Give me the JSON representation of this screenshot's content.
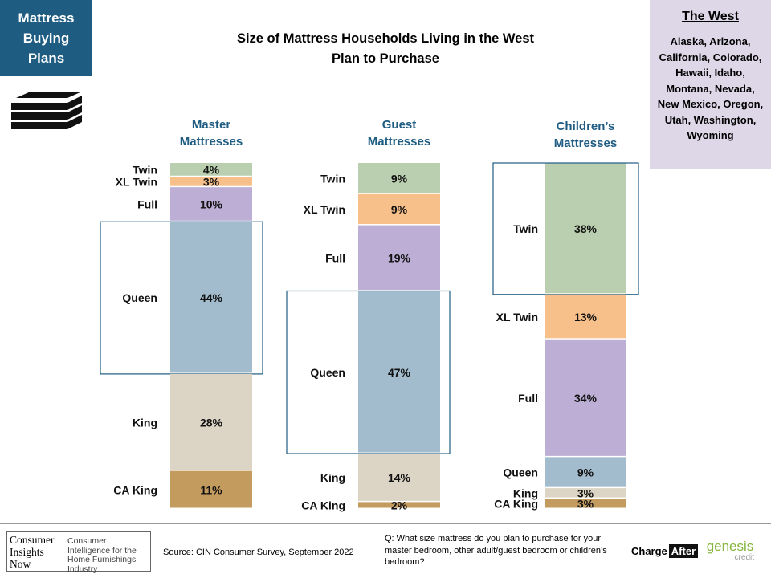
{
  "badge": {
    "text": "Mattress Buying Plans"
  },
  "title": {
    "line1": "Size of Mattress Households  Living in the West",
    "line2": "Plan to Purchase"
  },
  "region": {
    "title": "The West",
    "states": "Alaska, Arizona, California, Colorado, Hawaii, Idaho, Montana, Nevada, New Mexico, Oregon, Utah, Washington, Wyoming"
  },
  "chart_data": {
    "type": "bar",
    "subtype": "100% stacked column",
    "title": "Size of Mattress Households  Living in the West Plan to Purchase",
    "unit": "%",
    "colors": {
      "Twin": "#b9cfb0",
      "XL Twin": "#f7bf8a",
      "Full": "#bcaed4",
      "Queen": "#a3bccd",
      "King": "#dcd5c5",
      "CA King": "#c49b5e"
    },
    "label_color": "#1f5c82",
    "highlight_color": "#1f5c82",
    "series": [
      {
        "name": "Master Mattresses",
        "segments": [
          {
            "label": "Twin",
            "value": 4,
            "text": "4%"
          },
          {
            "label": "XL Twin",
            "value": 3,
            "text": "3%"
          },
          {
            "label": "Full",
            "value": 10,
            "text": "10%"
          },
          {
            "label": "Queen",
            "value": 44,
            "text": "44%",
            "highlight": true
          },
          {
            "label": "King",
            "value": 28,
            "text": "28%"
          },
          {
            "label": "CA King",
            "value": 11,
            "text": "11%"
          }
        ]
      },
      {
        "name": "Guest Mattresses",
        "segments": [
          {
            "label": "Twin",
            "value": 9,
            "text": "9%"
          },
          {
            "label": "XL Twin",
            "value": 9,
            "text": "9%"
          },
          {
            "label": "Full",
            "value": 19,
            "text": "19%"
          },
          {
            "label": "Queen",
            "value": 47,
            "text": "47%",
            "highlight": true
          },
          {
            "label": "King",
            "value": 14,
            "text": "14%"
          },
          {
            "label": "CA King",
            "value": 2,
            "text": "2%"
          }
        ]
      },
      {
        "name": "Children’s Mattresses",
        "segments": [
          {
            "label": "Twin",
            "value": 38,
            "text": "38%",
            "highlight": true
          },
          {
            "label": "XL Twin",
            "value": 13,
            "text": "13%"
          },
          {
            "label": "Full",
            "value": 34,
            "text": "34%"
          },
          {
            "label": "Queen",
            "value": 9,
            "text": "9%"
          },
          {
            "label": "King",
            "value": 3,
            "text": "3%"
          },
          {
            "label": "CA King",
            "value": 3,
            "text": "3%"
          }
        ]
      }
    ]
  },
  "footer": {
    "logo_left": "Consumer Insights Now",
    "logo_right": "Consumer Intelligence for the Home Furnishings Industry",
    "source": "Source: CIN Consumer Survey, September  2022",
    "question": "Q: What size mattress do you plan to purchase for your master bedroom, other adult/guest bedroom or children’s bedroom?",
    "chargeafter_1": "Charge",
    "chargeafter_2": "After",
    "genesis_1": "genesis",
    "genesis_2": "credit"
  }
}
